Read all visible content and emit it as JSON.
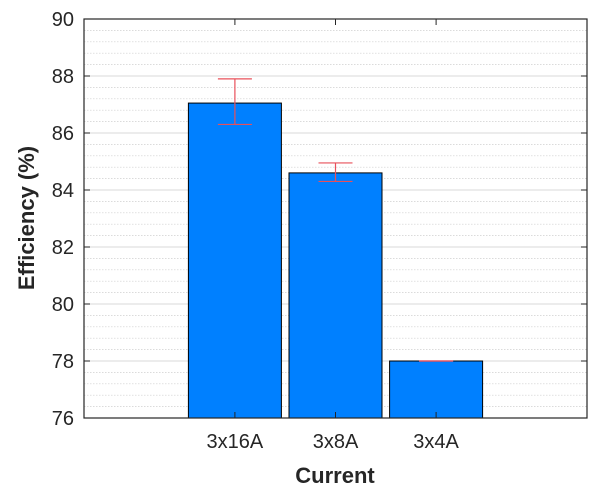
{
  "chart_data": {
    "type": "bar",
    "categories": [
      "3x16A",
      "3x8A",
      "3x4A"
    ],
    "values": [
      87.05,
      84.6,
      78.0
    ],
    "error_low": [
      86.3,
      84.3,
      78.0
    ],
    "error_high": [
      87.9,
      84.95,
      78.0
    ],
    "xlabel": "Current",
    "ylabel": "Efficiency (%)",
    "ylim": [
      76,
      90
    ],
    "yticks": [
      "76",
      "78",
      "80",
      "82",
      "84",
      "86",
      "88",
      "90"
    ],
    "grid": true,
    "bar_color": "#0080FF",
    "error_color": "#E8505A"
  }
}
